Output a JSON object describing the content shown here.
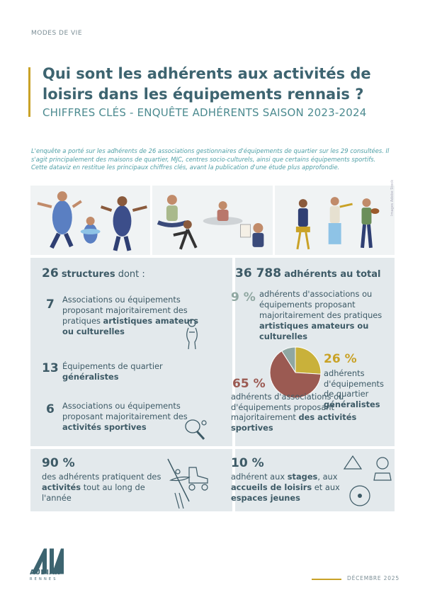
{
  "header": {
    "section": "MODES DE VIE",
    "title": "Qui sont les adhérents aux activités de loisirs dans les équipements rennais ?",
    "subtitle": "CHIFFRES CLÉS - ENQUÊTE ADHÉRENTS SAISON 2023-2024"
  },
  "intro": {
    "line1": "L'enquête a porté sur les adhérents de 26 associations gestionnaires d'équipements de quartier sur les 29 consultées. Il s'agit principalement des maisons de quartier, MJC, centres socio-culturels, ainsi que certains équipements sportifs.",
    "line2": "Cette dataviz en restitue les principaux chiffres clés, avant la publication d'une étude plus approfondie."
  },
  "photo_credit": "Images Adobe Stock",
  "structures": {
    "count": "26",
    "count_label": "structures",
    "suffix": " dont :",
    "items": [
      {
        "num": "7",
        "pre": "Associations ou équipements proposant majoritairement des pratiques ",
        "bold": "artistiques amateurs ou culturelles",
        "icon": "statue-icon"
      },
      {
        "num": "13",
        "pre": "Équipements de quartier ",
        "bold": "généralistes",
        "icon": ""
      },
      {
        "num": "6",
        "pre": "Associations ou équipements proposant majoritairement des ",
        "bold": "activités sportives",
        "icon": "ping-pong-icon"
      }
    ]
  },
  "adherents": {
    "total": "36 788",
    "total_label": "adhérents au total",
    "pct_art": "9 %",
    "art_pre": "adhérents d'associations ou équipements proposant majoritairement des pratiques ",
    "art_bold": "artistiques amateurs ou culturelles",
    "pct_gen": "26 %",
    "gen_pre": "adhérents d'équipements de quartier ",
    "gen_bold": "généralistes",
    "pct_sport": "65 %",
    "sport_pre": "adhérents d'associations ou d'équipements proposant majoritairement ",
    "sport_bold": "des activités sportives"
  },
  "chart_data": {
    "type": "pie",
    "categories": [
      "artistiques amateurs ou culturelles",
      "généralistes",
      "activités sportives"
    ],
    "values": [
      9,
      26,
      65
    ],
    "colors": [
      "#8fa7a1",
      "#c9b13a",
      "#9b5a52"
    ]
  },
  "yearlong": {
    "pct": "90 %",
    "pre": "des adhérents pratiquent des ",
    "bold": "activités",
    "post": " tout au long de l'année"
  },
  "stages": {
    "pct": "10 %",
    "pre": "adhérent aux ",
    "b1": "stages",
    "mid1": ", aux ",
    "b2": "accueils de loisirs",
    "mid2": " et aux ",
    "b3": "espaces jeunes"
  },
  "footer": {
    "logo_main": "AUDIAR",
    "logo_sub": "RENNES",
    "date": "DÉCEMBRE 2025"
  }
}
